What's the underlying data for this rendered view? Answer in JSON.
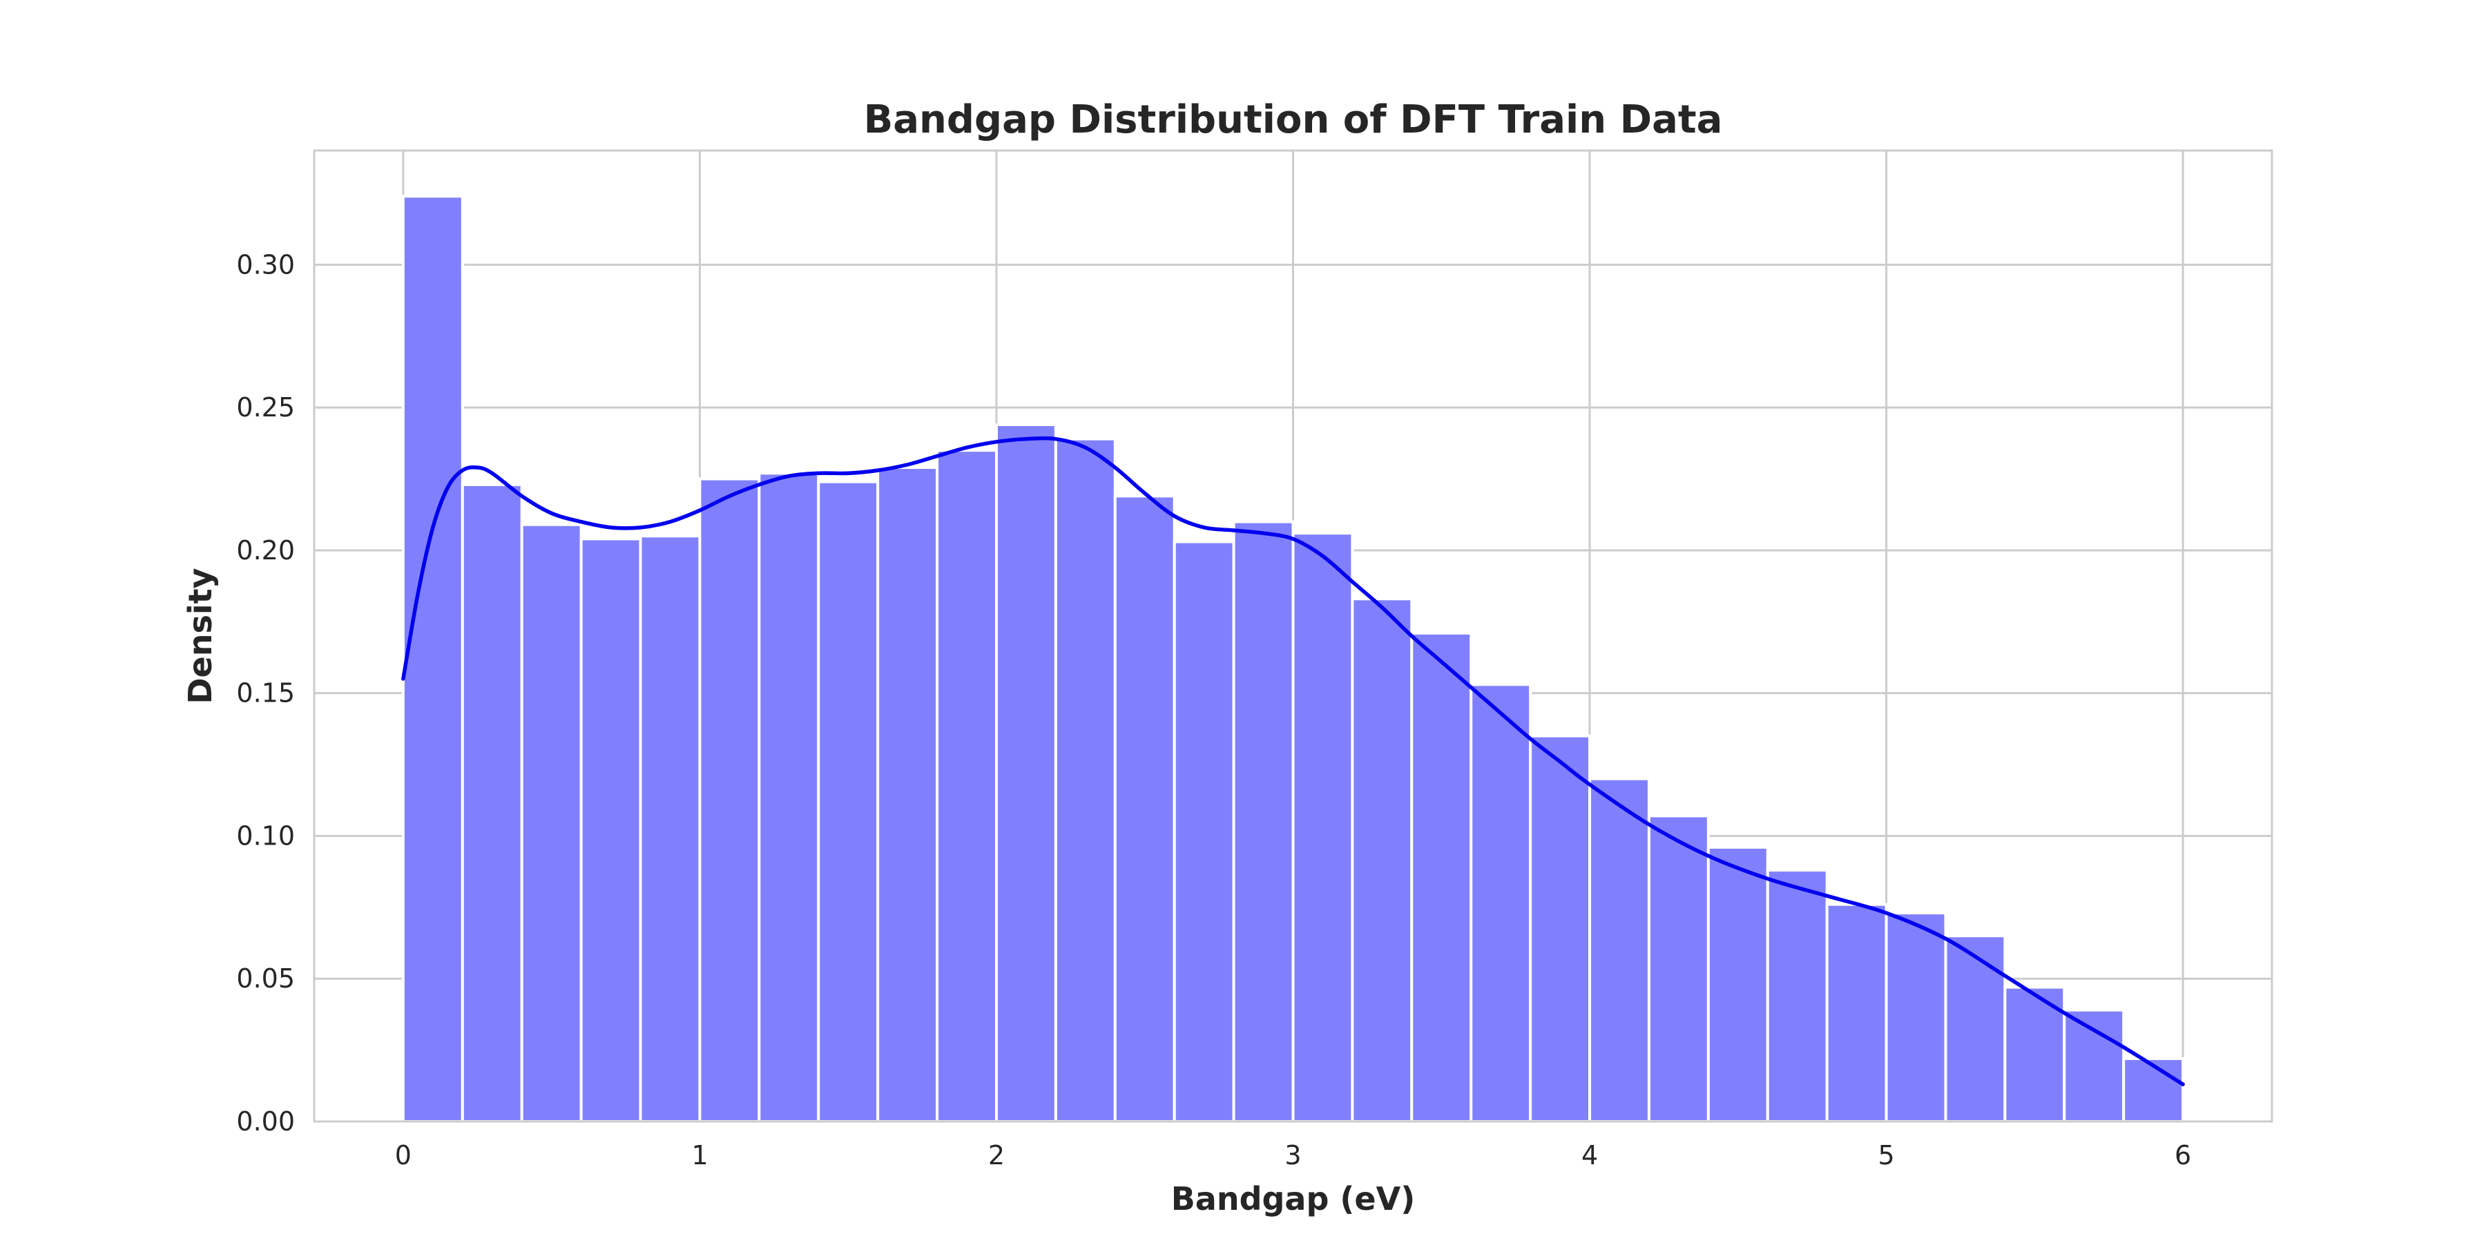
{
  "chart_data": {
    "type": "bar",
    "subtype": "histogram",
    "title": "Bandgap Distribution of DFT Train Data",
    "xlabel": "Bandgap (eV)",
    "ylabel": "Density",
    "xlim": [
      -0.3,
      6.3
    ],
    "ylim": [
      0,
      0.34
    ],
    "xticks": [
      0,
      1,
      2,
      3,
      4,
      5,
      6
    ],
    "xtick_labels": [
      "0",
      "1",
      "2",
      "3",
      "4",
      "5",
      "6"
    ],
    "yticks": [
      0,
      0.05,
      0.1,
      0.15,
      0.2,
      0.25,
      0.3
    ],
    "ytick_labels": [
      "0.00",
      "0.05",
      "0.10",
      "0.15",
      "0.20",
      "0.25",
      "0.30"
    ],
    "grid": true,
    "bin_edges": [
      0.0,
      0.2,
      0.4,
      0.6,
      0.8,
      1.0,
      1.2,
      1.4,
      1.6,
      1.8,
      2.0,
      2.2,
      2.4,
      2.6,
      2.8,
      3.0,
      3.2,
      3.4,
      3.6,
      3.8,
      4.0,
      4.2,
      4.4,
      4.6,
      4.8,
      5.0,
      5.2,
      5.4,
      5.6,
      5.8,
      6.0
    ],
    "values": [
      0.324,
      0.223,
      0.209,
      0.204,
      0.205,
      0.225,
      0.227,
      0.224,
      0.229,
      0.235,
      0.244,
      0.239,
      0.219,
      0.203,
      0.21,
      0.206,
      0.183,
      0.171,
      0.153,
      0.135,
      0.12,
      0.107,
      0.096,
      0.088,
      0.076,
      0.073,
      0.065,
      0.047,
      0.039,
      0.022
    ],
    "kde": {
      "x": [
        0.0,
        0.05,
        0.1,
        0.15,
        0.2,
        0.25,
        0.3,
        0.4,
        0.5,
        0.6,
        0.7,
        0.8,
        0.9,
        1.0,
        1.1,
        1.2,
        1.3,
        1.4,
        1.5,
        1.6,
        1.7,
        1.8,
        1.9,
        2.0,
        2.1,
        2.2,
        2.3,
        2.4,
        2.5,
        2.6,
        2.7,
        2.8,
        2.9,
        3.0,
        3.1,
        3.2,
        3.3,
        3.4,
        3.5,
        3.6,
        3.7,
        3.8,
        3.9,
        4.0,
        4.2,
        4.4,
        4.6,
        4.8,
        5.0,
        5.2,
        5.4,
        5.6,
        5.8,
        6.0
      ],
      "y": [
        0.155,
        0.185,
        0.208,
        0.222,
        0.228,
        0.229,
        0.227,
        0.219,
        0.213,
        0.21,
        0.208,
        0.208,
        0.21,
        0.214,
        0.219,
        0.223,
        0.226,
        0.227,
        0.227,
        0.228,
        0.23,
        0.233,
        0.236,
        0.238,
        0.239,
        0.239,
        0.236,
        0.229,
        0.22,
        0.212,
        0.208,
        0.207,
        0.206,
        0.204,
        0.198,
        0.189,
        0.18,
        0.17,
        0.161,
        0.152,
        0.143,
        0.134,
        0.126,
        0.118,
        0.104,
        0.093,
        0.085,
        0.079,
        0.073,
        0.064,
        0.051,
        0.038,
        0.026,
        0.013
      ]
    },
    "colors": {
      "bar_fill": "#8080ff",
      "bar_edge": "#ffffff",
      "kde_line": "#0000ee",
      "grid": "#cccccc",
      "text": "#262626"
    }
  }
}
